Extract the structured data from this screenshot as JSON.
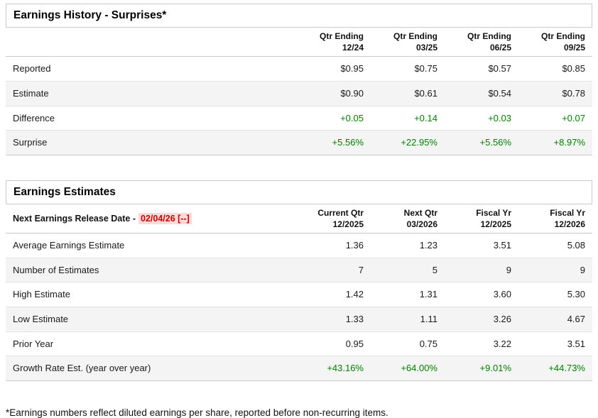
{
  "surprises": {
    "title": "Earnings History - Surprises*",
    "columns": [
      {
        "line1": "Qtr Ending",
        "line2": "12/24"
      },
      {
        "line1": "Qtr Ending",
        "line2": "03/25"
      },
      {
        "line1": "Qtr Ending",
        "line2": "06/25"
      },
      {
        "line1": "Qtr Ending",
        "line2": "09/25"
      }
    ],
    "rows": [
      {
        "label": "Reported",
        "values": [
          "$0.95",
          "$0.75",
          "$0.57",
          "$0.85"
        ],
        "positive": false
      },
      {
        "label": "Estimate",
        "values": [
          "$0.90",
          "$0.61",
          "$0.54",
          "$0.78"
        ],
        "positive": false
      },
      {
        "label": "Difference",
        "values": [
          "+0.05",
          "+0.14",
          "+0.03",
          "+0.07"
        ],
        "positive": true
      },
      {
        "label": "Surprise",
        "values": [
          "+5.56%",
          "+22.95%",
          "+5.56%",
          "+8.97%"
        ],
        "positive": true
      }
    ]
  },
  "estimates": {
    "title": "Earnings Estimates",
    "release_label": "Next Earnings Release Date -",
    "release_date": "02/04/26 [--]",
    "columns": [
      {
        "line1": "Current Qtr",
        "line2": "12/2025"
      },
      {
        "line1": "Next Qtr",
        "line2": "03/2026"
      },
      {
        "line1": "Fiscal Yr",
        "line2": "12/2025"
      },
      {
        "line1": "Fiscal Yr",
        "line2": "12/2026"
      }
    ],
    "rows": [
      {
        "label": "Average Earnings Estimate",
        "values": [
          "1.36",
          "1.23",
          "3.51",
          "5.08"
        ],
        "positive": false
      },
      {
        "label": "Number of Estimates",
        "values": [
          "7",
          "5",
          "9",
          "9"
        ],
        "positive": false
      },
      {
        "label": "High Estimate",
        "values": [
          "1.42",
          "1.31",
          "3.60",
          "5.30"
        ],
        "positive": false
      },
      {
        "label": "Low Estimate",
        "values": [
          "1.33",
          "1.11",
          "3.26",
          "4.67"
        ],
        "positive": false
      },
      {
        "label": "Prior Year",
        "values": [
          "0.95",
          "0.75",
          "3.22",
          "3.51"
        ],
        "positive": false
      },
      {
        "label": "Growth Rate Est. (year over year)",
        "values": [
          "+43.16%",
          "+64.00%",
          "+9.01%",
          "+44.73%"
        ],
        "positive": true
      }
    ]
  },
  "footnote": "*Earnings numbers reflect diluted earnings per share, reported before non-recurring items.",
  "colors": {
    "positive": "#008000",
    "alert": "#cc0000",
    "alert_bg": "#fbdada"
  }
}
